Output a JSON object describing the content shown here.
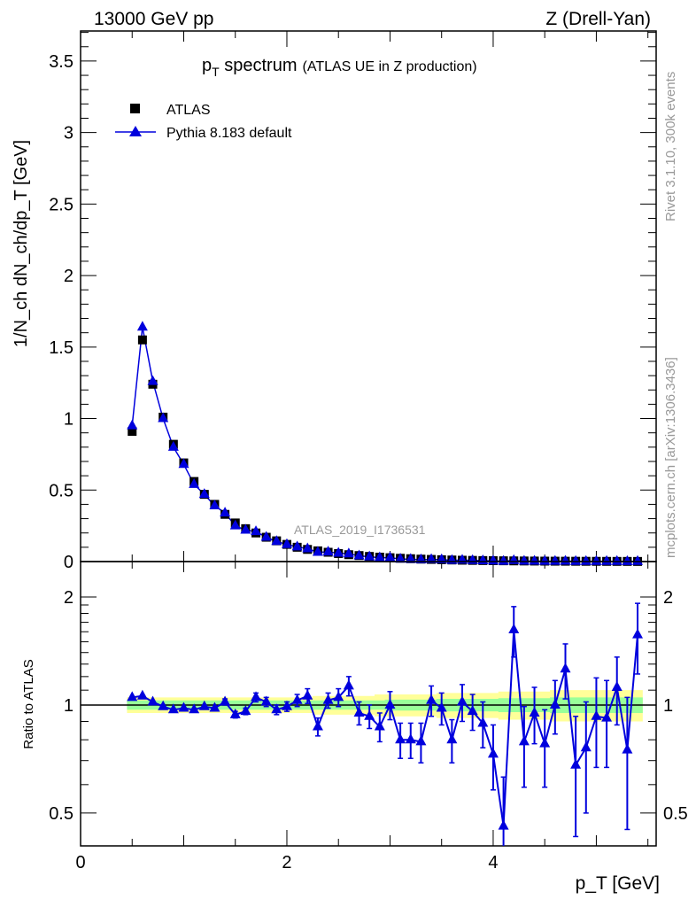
{
  "header": {
    "left": "13000 GeV pp",
    "right": "Z (Drell-Yan)"
  },
  "side": {
    "rivet": "Rivet 3.1.10,  300k events",
    "mcplots": "mcplots.cern.ch [arXiv:1306.3436]"
  },
  "chart_data": [
    {
      "type": "scatter",
      "title_main": "p",
      "title_sub": "T",
      "title_word": " spectrum",
      "title_extra": "(ATLAS UE in Z production)",
      "ylabel": "1/N_ch dN_ch/dp_T [GeV]",
      "xlabel": "p_T [GeV]",
      "analysis": "ATLAS_2019_I1736531",
      "xlim": [
        0,
        5.58
      ],
      "ylim": [
        0,
        3.71
      ],
      "y_ticks": [
        "0",
        "0.5",
        "1",
        "1.5",
        "2",
        "2.5",
        "3",
        "3.5"
      ],
      "legend_position": "top-left",
      "legend": [
        {
          "name": "ATLAS",
          "color": "#000000",
          "marker": "square"
        },
        {
          "name": "Pythia 8.183 default",
          "color": "#0000dd",
          "marker": "triangle"
        }
      ],
      "x": [
        0.5,
        0.6,
        0.7,
        0.8,
        0.9,
        1.0,
        1.1,
        1.2,
        1.3,
        1.4,
        1.5,
        1.6,
        1.7,
        1.8,
        1.9,
        2.0,
        2.1,
        2.2,
        2.3,
        2.4,
        2.5,
        2.6,
        2.7,
        2.8,
        2.9,
        3.0,
        3.1,
        3.2,
        3.3,
        3.4,
        3.5,
        3.6,
        3.7,
        3.8,
        3.9,
        4.0,
        4.1,
        4.2,
        4.3,
        4.4,
        4.5,
        4.6,
        4.7,
        4.8,
        4.9,
        5.0,
        5.1,
        5.2,
        5.3,
        5.4
      ],
      "series": [
        {
          "name": "ATLAS",
          "values": [
            0.91,
            1.55,
            1.24,
            1.01,
            0.82,
            0.69,
            0.56,
            0.47,
            0.4,
            0.33,
            0.27,
            0.23,
            0.2,
            0.17,
            0.145,
            0.12,
            0.1,
            0.085,
            0.075,
            0.065,
            0.056,
            0.048,
            0.042,
            0.036,
            0.031,
            0.027,
            0.023,
            0.02,
            0.017,
            0.015,
            0.013,
            0.011,
            0.0095,
            0.0082,
            0.0071,
            0.0062,
            0.0054,
            0.0047,
            0.0041,
            0.0036,
            0.0031,
            0.0027,
            0.0024,
            0.0021,
            0.0018,
            0.0016,
            0.0014,
            0.0012,
            0.0011,
            0.0009
          ]
        },
        {
          "name": "Pythia 8.183 default",
          "values": [
            0.95,
            1.64,
            1.26,
            1.0,
            0.8,
            0.68,
            0.54,
            0.47,
            0.39,
            0.34,
            0.25,
            0.22,
            0.21,
            0.17,
            0.141,
            0.119,
            0.103,
            0.09,
            0.065,
            0.067,
            0.059,
            0.054,
            0.04,
            0.033,
            0.027,
            0.027,
            0.018,
            0.016,
            0.013,
            0.015,
            0.013,
            0.0088,
            0.0097,
            0.0079,
            0.0063,
            0.0045,
            0.0025,
            0.0076,
            0.0032,
            0.0034,
            0.0024,
            0.0027,
            0.003,
            0.0014,
            0.0014,
            0.0015,
            0.0013,
            0.0013,
            0.0008,
            0.0014
          ]
        }
      ]
    },
    {
      "type": "scatter",
      "ylabel": "Ratio to ATLAS",
      "yscale": "log",
      "ylim": [
        0.405,
        2.51
      ],
      "y_ticks": [
        "0.5",
        "1",
        "2"
      ],
      "x_ticks": [
        "0",
        "2",
        "4"
      ],
      "x": [
        0.5,
        0.6,
        0.7,
        0.8,
        0.9,
        1.0,
        1.1,
        1.2,
        1.3,
        1.4,
        1.5,
        1.6,
        1.7,
        1.8,
        1.9,
        2.0,
        2.1,
        2.2,
        2.3,
        2.4,
        2.5,
        2.6,
        2.7,
        2.8,
        2.9,
        3.0,
        3.1,
        3.2,
        3.3,
        3.4,
        3.5,
        3.6,
        3.7,
        3.8,
        3.9,
        4.0,
        4.1,
        4.2,
        4.3,
        4.4,
        4.5,
        4.6,
        4.7,
        4.8,
        4.9,
        5.0,
        5.1,
        5.2,
        5.3,
        5.4
      ],
      "ratio": [
        1.05,
        1.06,
        1.02,
        0.99,
        0.97,
        0.98,
        0.97,
        0.99,
        0.98,
        1.02,
        0.94,
        0.96,
        1.05,
        1.02,
        0.97,
        0.99,
        1.03,
        1.06,
        0.87,
        1.03,
        1.05,
        1.13,
        0.95,
        0.93,
        0.87,
        1.0,
        0.8,
        0.8,
        0.79,
        1.03,
        0.98,
        0.8,
        1.02,
        0.96,
        0.89,
        0.73,
        0.46,
        1.62,
        0.79,
        0.95,
        0.78,
        1.0,
        1.26,
        0.68,
        0.76,
        0.93,
        0.92,
        1.12,
        0.75,
        1.57
      ],
      "ratio_err": [
        0.01,
        0.01,
        0.01,
        0.01,
        0.01,
        0.01,
        0.01,
        0.01,
        0.01,
        0.02,
        0.02,
        0.02,
        0.03,
        0.03,
        0.03,
        0.03,
        0.04,
        0.05,
        0.05,
        0.05,
        0.06,
        0.07,
        0.07,
        0.07,
        0.08,
        0.09,
        0.09,
        0.09,
        0.1,
        0.1,
        0.1,
        0.11,
        0.12,
        0.11,
        0.13,
        0.15,
        0.17,
        0.26,
        0.2,
        0.17,
        0.19,
        0.17,
        0.22,
        0.25,
        0.26,
        0.26,
        0.25,
        0.24,
        0.3,
        0.35
      ],
      "band_green": [
        0.03,
        0.03,
        0.03,
        0.03,
        0.03,
        0.03,
        0.03,
        0.03,
        0.03,
        0.03,
        0.03,
        0.03,
        0.03,
        0.03,
        0.03,
        0.03,
        0.03,
        0.03,
        0.03,
        0.03,
        0.03,
        0.03,
        0.03,
        0.03,
        0.03,
        0.035,
        0.035,
        0.035,
        0.035,
        0.035,
        0.04,
        0.04,
        0.04,
        0.04,
        0.04,
        0.04,
        0.045,
        0.045,
        0.045,
        0.045,
        0.045,
        0.05,
        0.05,
        0.05,
        0.05,
        0.05,
        0.05,
        0.05,
        0.05,
        0.05
      ],
      "band_yellow": [
        0.05,
        0.05,
        0.05,
        0.05,
        0.05,
        0.05,
        0.05,
        0.05,
        0.05,
        0.05,
        0.05,
        0.05,
        0.05,
        0.05,
        0.05,
        0.05,
        0.05,
        0.05,
        0.06,
        0.06,
        0.06,
        0.06,
        0.06,
        0.06,
        0.07,
        0.07,
        0.07,
        0.07,
        0.07,
        0.07,
        0.08,
        0.08,
        0.08,
        0.08,
        0.08,
        0.08,
        0.09,
        0.09,
        0.09,
        0.09,
        0.09,
        0.1,
        0.1,
        0.1,
        0.1,
        0.1,
        0.1,
        0.1,
        0.1,
        0.1
      ]
    }
  ]
}
